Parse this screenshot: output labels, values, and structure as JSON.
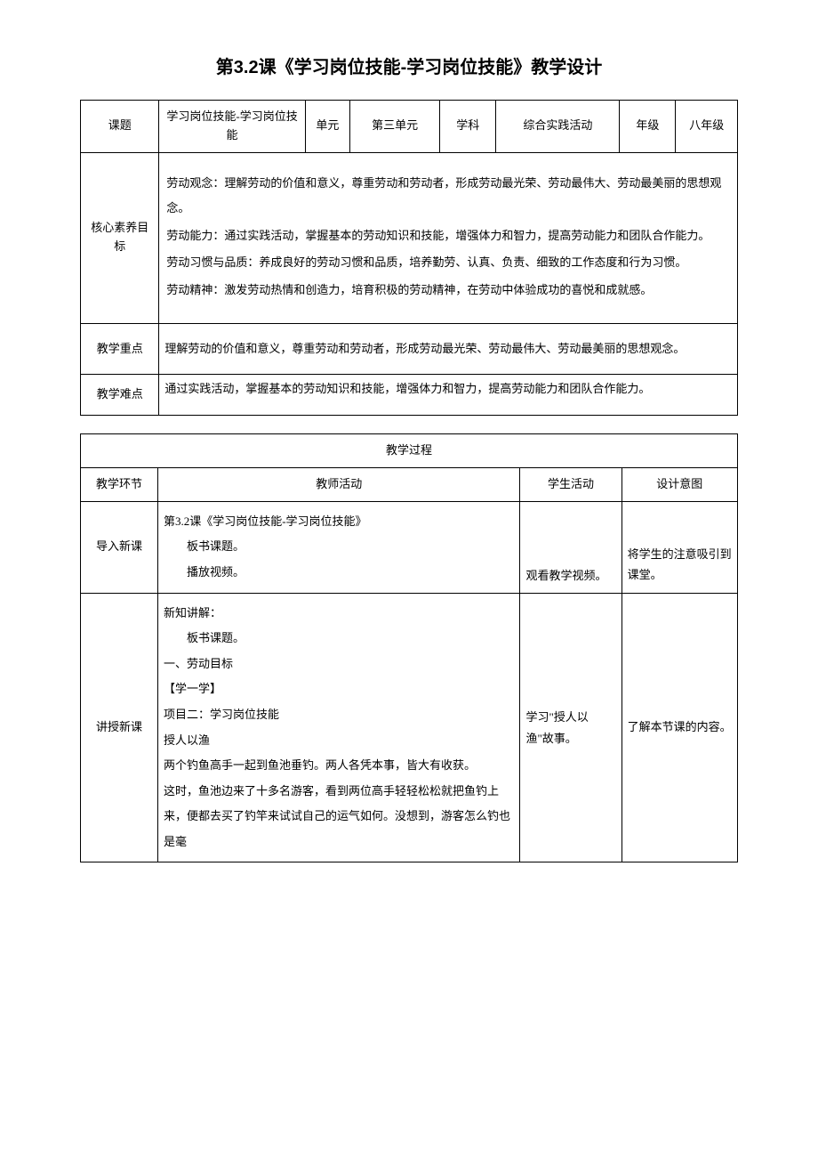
{
  "title": "第3.2课《学习岗位技能-学习岗位技能》教学设计",
  "info": {
    "topic_label": "课题",
    "topic": "学习岗位技能-学习岗位技能",
    "unit_label": "单元",
    "unit": "第三单元",
    "subject_label": "学科",
    "subject": "综合实践活动",
    "grade_label": "年级",
    "grade": "八年级"
  },
  "objectives": {
    "label": "核心素养目标",
    "p1": "劳动观念：理解劳动的价值和意义，尊重劳动和劳动者，形成劳动最光荣、劳动最伟大、劳动最美丽的思想观念。",
    "p2": "劳动能力：通过实践活动，掌握基本的劳动知识和技能，增强体力和智力，提高劳动能力和团队合作能力。",
    "p3": "劳动习惯与品质：养成良好的劳动习惯和品质，培养勤劳、认真、负责、细致的工作态度和行为习惯。",
    "p4": "劳动精神：激发劳动热情和创造力，培育积极的劳动精神，在劳动中体验成功的喜悦和成就感。"
  },
  "keypoint": {
    "label": "教学重点",
    "text": "理解劳动的价值和意义，尊重劳动和劳动者，形成劳动最光荣、劳动最伟大、劳动最美丽的思想观念。"
  },
  "difficulty": {
    "label": "教学难点",
    "text": "通过实践活动，掌握基本的劳动知识和技能，增强体力和智力，提高劳动能力和团队合作能力。"
  },
  "process": {
    "header": "教学过程",
    "cols": {
      "stage": "教学环节",
      "teacher": "教师活动",
      "student": "学生活动",
      "intent": "设计意图"
    },
    "intro": {
      "stage": "导入新课",
      "teacher": {
        "p1": "第3.2课《学习岗位技能-学习岗位技能》",
        "p2": "板书课题。",
        "p3": "播放视频。"
      },
      "student": "观看教学视频。",
      "intent": "将学生的注意吸引到课堂。"
    },
    "lecture": {
      "stage": "讲授新课",
      "teacher": {
        "p1": "新知讲解：",
        "p2": "板书课题。",
        "p3": "一、劳动目标",
        "p4": "【学一学】",
        "p5": "项目二：学习岗位技能",
        "p6": "授人以渔",
        "p7": "两个钓鱼高手一起到鱼池垂钓。两人各凭本事，皆大有收获。",
        "p8": "这时，鱼池边来了十多名游客，看到两位高手轻轻松松就把鱼钓上来，便都去买了钓竿来试试自己的运气如何。没想到，游客怎么钓也是毫"
      },
      "student": "学习\"授人以渔\"故事。",
      "intent": "了解本节课的内容。"
    }
  }
}
